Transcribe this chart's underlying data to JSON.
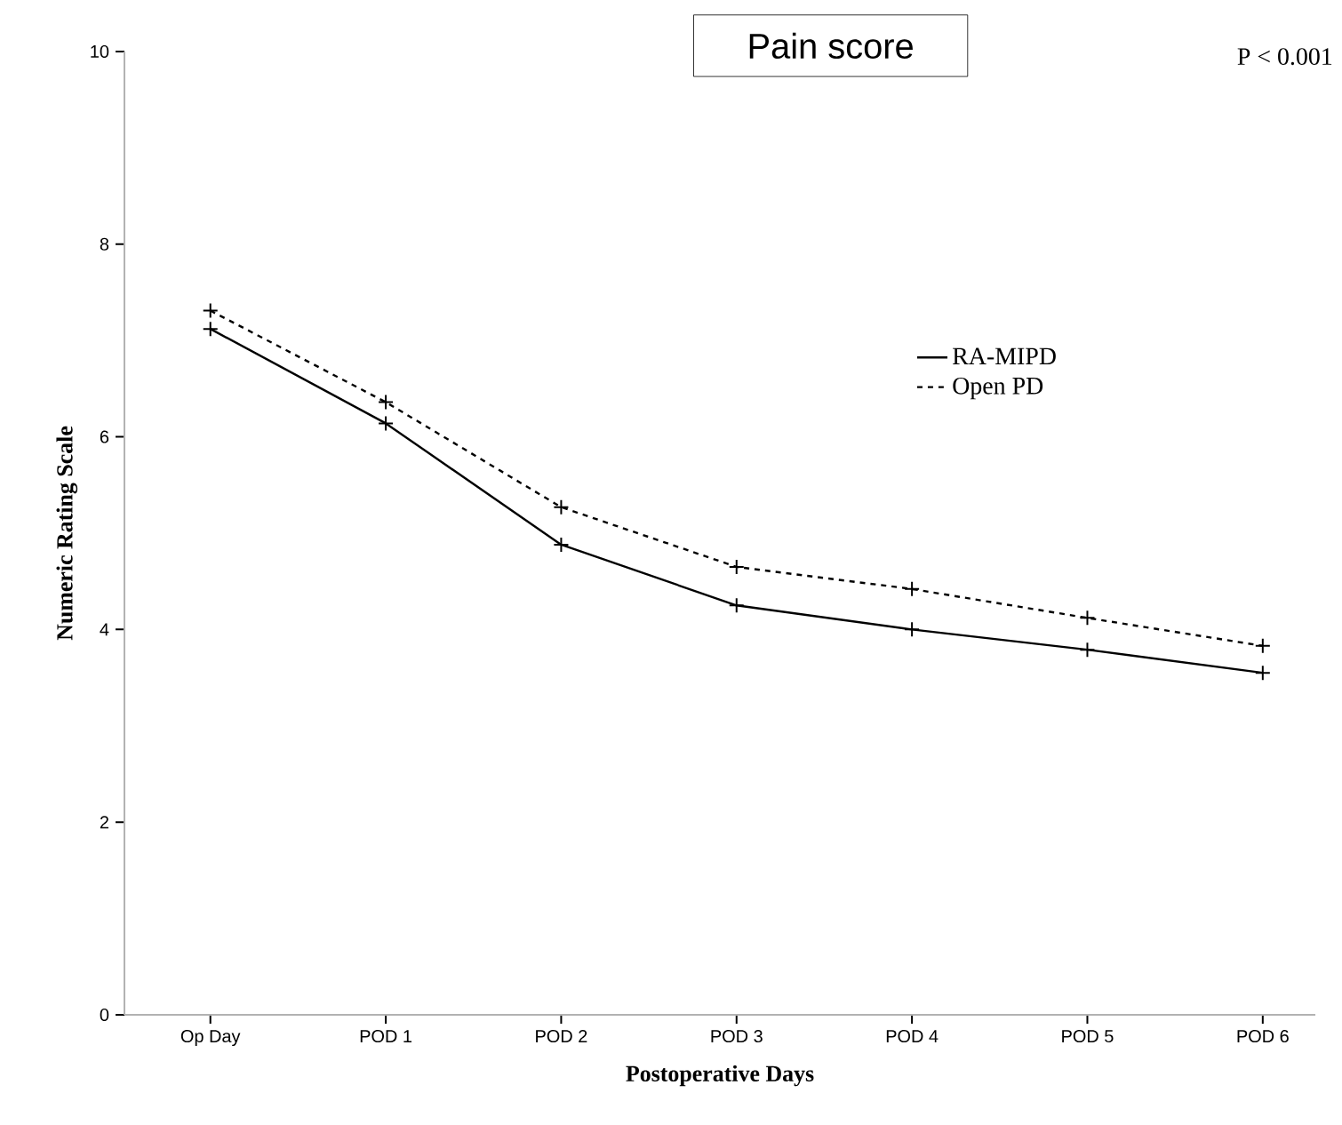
{
  "chart_data": {
    "type": "line",
    "title": "Pain score",
    "xlabel": "Postoperative Days",
    "ylabel": "Numeric Rating Scale",
    "categories": [
      "Op Day",
      "POD 1",
      "POD 2",
      "POD 3",
      "POD 4",
      "POD 5",
      "POD 6"
    ],
    "series": [
      {
        "name": "RA-MIPD",
        "color": "#000000",
        "line_style": "solid",
        "values": [
          7.12,
          6.14,
          4.88,
          4.25,
          4.0,
          3.79,
          3.55
        ]
      },
      {
        "name": "Open PD",
        "color": "#000000",
        "line_style": "dashed",
        "values": [
          7.31,
          6.36,
          5.27,
          4.65,
          4.42,
          4.12,
          3.83
        ]
      }
    ],
    "ylim": [
      0,
      10
    ],
    "yticks": [
      0,
      2,
      4,
      6,
      8,
      10
    ],
    "marker": "cross",
    "legend": "right",
    "grid": false,
    "annotations": [
      "P < 0.001"
    ]
  }
}
